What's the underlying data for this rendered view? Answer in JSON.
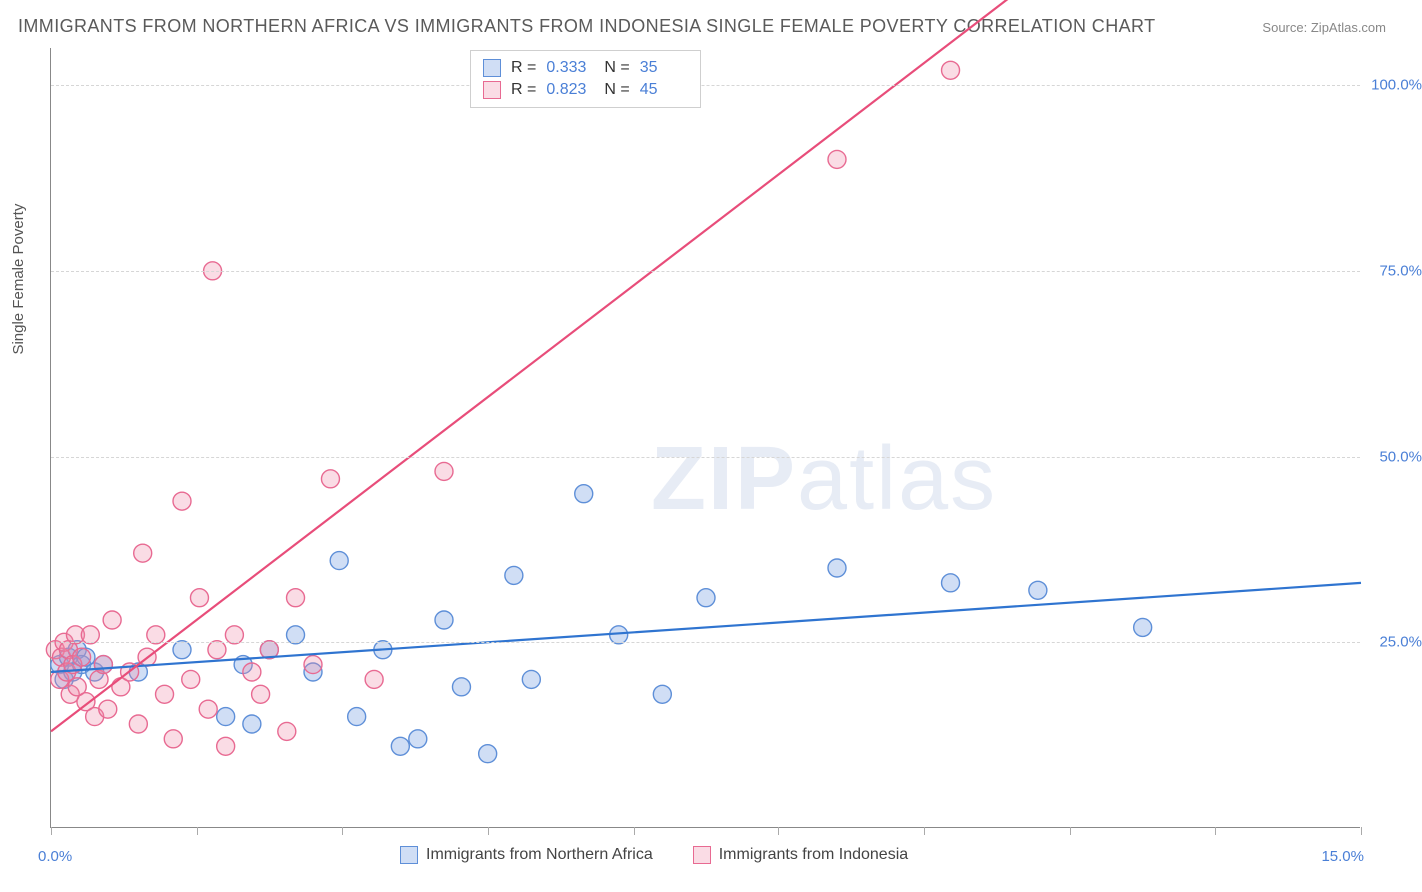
{
  "title": "IMMIGRANTS FROM NORTHERN AFRICA VS IMMIGRANTS FROM INDONESIA SINGLE FEMALE POVERTY CORRELATION CHART",
  "source_label": "Source:",
  "source_value": "ZipAtlas.com",
  "y_axis_title": "Single Female Poverty",
  "watermark_a": "ZIP",
  "watermark_b": "atlas",
  "chart": {
    "type": "scatter",
    "xlim": [
      0,
      15
    ],
    "ylim": [
      0,
      105
    ],
    "x_tick_positions": [
      0,
      1.67,
      3.33,
      5.0,
      6.67,
      8.33,
      10.0,
      11.67,
      13.33,
      15.0
    ],
    "x_tick_labels": {
      "first": "0.0%",
      "last": "15.0%"
    },
    "y_ticks": [
      25.0,
      50.0,
      75.0,
      100.0
    ],
    "y_tick_labels": [
      "25.0%",
      "50.0%",
      "75.0%",
      "100.0%"
    ],
    "grid_color": "#d6d6d6",
    "axis_color": "#888888",
    "background_color": "#ffffff",
    "marker_radius": 9,
    "marker_stroke_width": 1.4,
    "line_width": 2.2,
    "series": [
      {
        "name": "Immigrants from Northern Africa",
        "color_fill": "rgba(120,160,225,0.35)",
        "color_stroke": "#5e8fd8",
        "line_color": "#2f74d0",
        "R": "0.333",
        "N": "35",
        "trend": {
          "x1": 0,
          "y1": 21,
          "x2": 15,
          "y2": 33
        },
        "points": [
          [
            0.1,
            22
          ],
          [
            0.15,
            20
          ],
          [
            0.2,
            23
          ],
          [
            0.25,
            21
          ],
          [
            0.3,
            24
          ],
          [
            0.35,
            22
          ],
          [
            0.4,
            23
          ],
          [
            0.5,
            21
          ],
          [
            0.6,
            22
          ],
          [
            1.0,
            21
          ],
          [
            1.5,
            24
          ],
          [
            2.0,
            15
          ],
          [
            2.2,
            22
          ],
          [
            2.3,
            14
          ],
          [
            2.5,
            24
          ],
          [
            2.8,
            26
          ],
          [
            3.0,
            21
          ],
          [
            3.3,
            36
          ],
          [
            3.5,
            15
          ],
          [
            3.8,
            24
          ],
          [
            4.0,
            11
          ],
          [
            4.2,
            12
          ],
          [
            4.5,
            28
          ],
          [
            4.7,
            19
          ],
          [
            5.0,
            10
          ],
          [
            5.3,
            34
          ],
          [
            5.5,
            20
          ],
          [
            6.1,
            45
          ],
          [
            6.5,
            26
          ],
          [
            7.0,
            18
          ],
          [
            7.5,
            31
          ],
          [
            9.0,
            35
          ],
          [
            10.3,
            33
          ],
          [
            11.3,
            32
          ],
          [
            12.5,
            27
          ]
        ]
      },
      {
        "name": "Immigrants from Indonesia",
        "color_fill": "rgba(240,140,170,0.30)",
        "color_stroke": "#e86a92",
        "line_color": "#e84d7a",
        "R": "0.823",
        "N": "45",
        "trend": {
          "x1": 0,
          "y1": 13,
          "x2": 11.0,
          "y2": 112
        },
        "points": [
          [
            0.05,
            24
          ],
          [
            0.1,
            20
          ],
          [
            0.12,
            23
          ],
          [
            0.15,
            25
          ],
          [
            0.18,
            21
          ],
          [
            0.2,
            24
          ],
          [
            0.22,
            18
          ],
          [
            0.25,
            22
          ],
          [
            0.28,
            26
          ],
          [
            0.3,
            19
          ],
          [
            0.35,
            23
          ],
          [
            0.4,
            17
          ],
          [
            0.45,
            26
          ],
          [
            0.5,
            15
          ],
          [
            0.55,
            20
          ],
          [
            0.6,
            22
          ],
          [
            0.65,
            16
          ],
          [
            0.7,
            28
          ],
          [
            0.8,
            19
          ],
          [
            0.9,
            21
          ],
          [
            1.0,
            14
          ],
          [
            1.05,
            37
          ],
          [
            1.1,
            23
          ],
          [
            1.2,
            26
          ],
          [
            1.3,
            18
          ],
          [
            1.4,
            12
          ],
          [
            1.5,
            44
          ],
          [
            1.6,
            20
          ],
          [
            1.7,
            31
          ],
          [
            1.8,
            16
          ],
          [
            1.85,
            75
          ],
          [
            1.9,
            24
          ],
          [
            2.0,
            11
          ],
          [
            2.1,
            26
          ],
          [
            2.3,
            21
          ],
          [
            2.4,
            18
          ],
          [
            2.5,
            24
          ],
          [
            2.7,
            13
          ],
          [
            2.8,
            31
          ],
          [
            3.0,
            22
          ],
          [
            3.2,
            47
          ],
          [
            3.7,
            20
          ],
          [
            4.5,
            48
          ],
          [
            9.0,
            90
          ],
          [
            10.3,
            102
          ]
        ]
      }
    ]
  },
  "legend_labels": {
    "R": "R =",
    "N": "N ="
  }
}
